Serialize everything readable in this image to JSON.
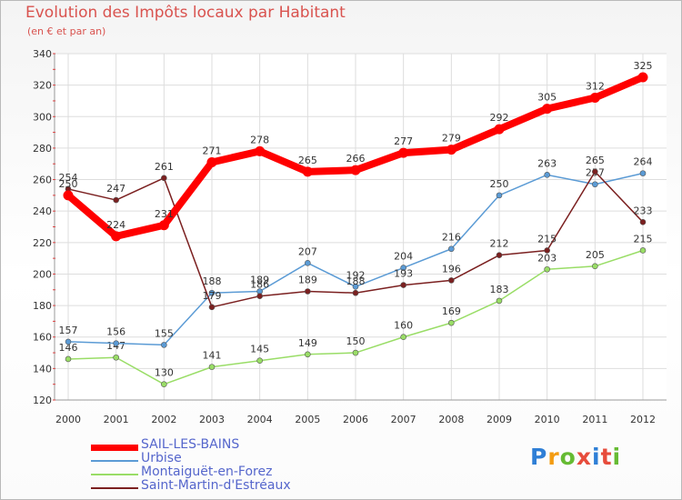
{
  "title": "Evolution des Impôts locaux par Habitant",
  "subtitle": "(en € et par an)",
  "brand": {
    "text": "Proxiti",
    "colors": [
      "#2f7fd6",
      "#f39c12",
      "#66bb33",
      "#e74c3c",
      "#2f7fd6",
      "#e74c3c",
      "#66bb33"
    ]
  },
  "chart_data": {
    "type": "line",
    "title": "Evolution des Impôts locaux par Habitant",
    "subtitle": "(en € et par an)",
    "x": [
      "2000",
      "2001",
      "2002",
      "2003",
      "2004",
      "2005",
      "2006",
      "2007",
      "2008",
      "2009",
      "2010",
      "2011",
      "2012"
    ],
    "ylim": [
      120,
      340
    ],
    "yticks": [
      120,
      140,
      160,
      180,
      200,
      220,
      240,
      260,
      280,
      300,
      320,
      340
    ],
    "grid": true,
    "legend": "bottom-left",
    "series": [
      {
        "name": "SAIL-LES-BAINS",
        "color": "#ff0000",
        "values": [
          250,
          224,
          231,
          271,
          278,
          265,
          266,
          277,
          279,
          292,
          305,
          312,
          325
        ]
      },
      {
        "name": "Urbise",
        "color": "#5b9bd5",
        "values": [
          157,
          156,
          155,
          188,
          189,
          207,
          192,
          204,
          216,
          250,
          263,
          257,
          264
        ]
      },
      {
        "name": "Montaiguët-en-Forez",
        "color": "#99dd66",
        "values": [
          146,
          147,
          130,
          141,
          145,
          149,
          150,
          160,
          169,
          183,
          203,
          205,
          215
        ]
      },
      {
        "name": "Saint-Martin-d'Estréaux",
        "color": "#7b2020",
        "values": [
          254,
          247,
          261,
          179,
          186,
          189,
          188,
          193,
          196,
          212,
          215,
          265,
          233
        ]
      }
    ]
  }
}
